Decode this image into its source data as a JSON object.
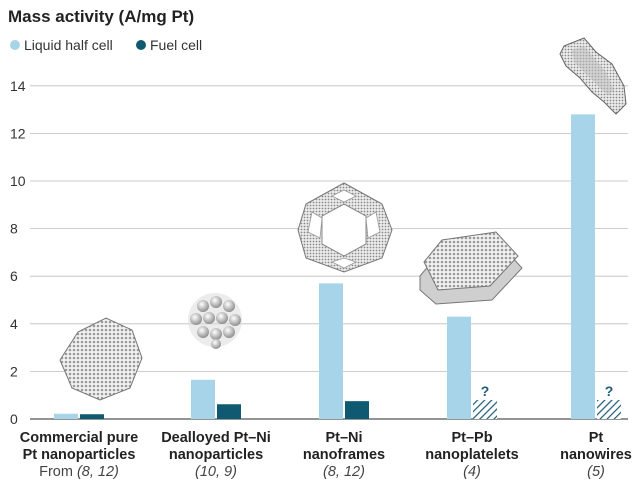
{
  "chart_data": {
    "type": "bar",
    "title": "Mass activity (A/mg Pt)",
    "ylim": [
      0,
      15
    ],
    "yticks": [
      0,
      2,
      4,
      6,
      8,
      10,
      12,
      14
    ],
    "grid": true,
    "legend": {
      "position": "top-left"
    },
    "colors": {
      "liquid": "#a8d4ea",
      "fuel": "#0f5a70",
      "hatch": "#1d5a76"
    },
    "categories": [
      {
        "line1": "Commercial pure",
        "line2": "Pt nanoparticles",
        "ref_prefix": "From ",
        "ref": "(8, 12)"
      },
      {
        "line1": "Dealloyed Pt–Ni",
        "line2": "nanoparticles",
        "ref_prefix": "",
        "ref": "(10, 9)"
      },
      {
        "line1": "Pt–Ni",
        "line2": "nanoframes",
        "ref_prefix": "",
        "ref": "(8, 12)"
      },
      {
        "line1": "Pt–Pb",
        "line2": "nanoplatelets",
        "ref_prefix": "",
        "ref": "(4)"
      },
      {
        "line1": "Pt",
        "line2": "nanowires",
        "ref_prefix": "",
        "ref": "(5)"
      }
    ],
    "series": [
      {
        "name": "Liquid half cell",
        "values": [
          0.22,
          1.65,
          5.7,
          4.3,
          12.8
        ]
      },
      {
        "name": "Fuel cell",
        "values": [
          0.2,
          0.62,
          0.75,
          null,
          null
        ]
      }
    ],
    "unknown_marker": "?",
    "unknown_estimate": 0.8
  }
}
